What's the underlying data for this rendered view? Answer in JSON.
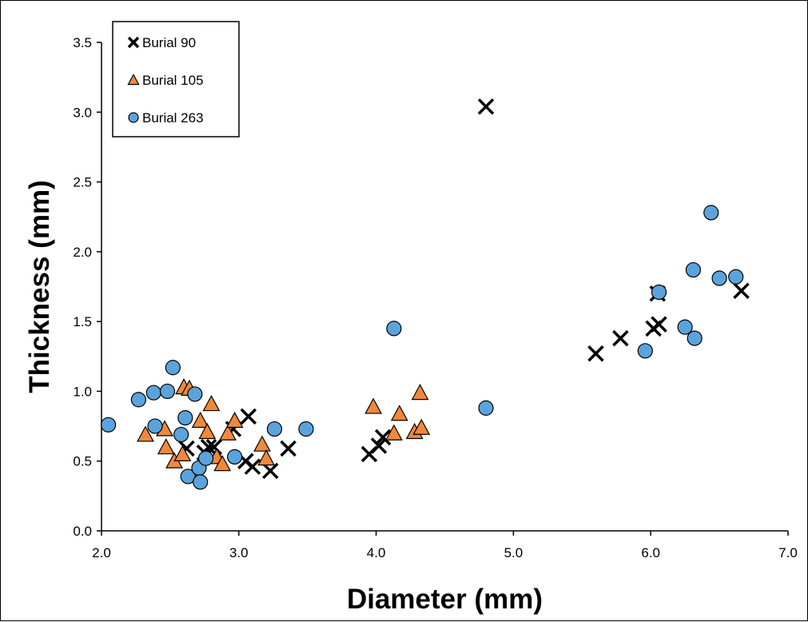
{
  "chart_data": {
    "type": "scatter",
    "title": "",
    "xlabel": "Diameter (mm)",
    "ylabel": "Thickness (mm)",
    "xlim": [
      2.0,
      7.0
    ],
    "ylim": [
      0.0,
      3.5
    ],
    "xticks": [
      "2.0",
      "3.0",
      "4.0",
      "5.0",
      "6.0",
      "7.0"
    ],
    "yticks": [
      "0.0",
      "0.5",
      "1.0",
      "1.5",
      "2.0",
      "2.5",
      "3.0",
      "3.5"
    ],
    "grid": false,
    "legend_position": "top-left",
    "series": [
      {
        "name": "Burial 90",
        "marker": "x",
        "color": "#000000",
        "points": [
          [
            2.62,
            0.59
          ],
          [
            2.75,
            0.56
          ],
          [
            2.78,
            0.6
          ],
          [
            2.82,
            0.6
          ],
          [
            2.96,
            0.73
          ],
          [
            3.05,
            0.5
          ],
          [
            3.07,
            0.82
          ],
          [
            3.1,
            0.46
          ],
          [
            3.23,
            0.43
          ],
          [
            3.36,
            0.59
          ],
          [
            3.95,
            0.55
          ],
          [
            4.02,
            0.61
          ],
          [
            4.05,
            0.67
          ],
          [
            4.8,
            3.04
          ],
          [
            5.6,
            1.27
          ],
          [
            5.78,
            1.38
          ],
          [
            6.02,
            1.45
          ],
          [
            6.06,
            1.48
          ],
          [
            6.05,
            1.7
          ],
          [
            6.66,
            1.72
          ]
        ]
      },
      {
        "name": "Burial 105",
        "marker": "triangle",
        "color": "#f0883c",
        "points": [
          [
            2.32,
            0.69
          ],
          [
            2.46,
            0.73
          ],
          [
            2.47,
            0.6
          ],
          [
            2.53,
            0.5
          ],
          [
            2.59,
            0.55
          ],
          [
            2.6,
            1.03
          ],
          [
            2.64,
            1.02
          ],
          [
            2.72,
            0.79
          ],
          [
            2.77,
            0.71
          ],
          [
            2.8,
            0.91
          ],
          [
            2.84,
            0.53
          ],
          [
            2.88,
            0.48
          ],
          [
            2.92,
            0.7
          ],
          [
            2.97,
            0.79
          ],
          [
            3.17,
            0.62
          ],
          [
            3.2,
            0.52
          ],
          [
            3.98,
            0.89
          ],
          [
            4.13,
            0.7
          ],
          [
            4.17,
            0.84
          ],
          [
            4.28,
            0.71
          ],
          [
            4.32,
            0.99
          ],
          [
            4.33,
            0.74
          ]
        ]
      },
      {
        "name": "Burial 263",
        "marker": "circle",
        "color": "#5ba3dc",
        "points": [
          [
            2.05,
            0.76
          ],
          [
            2.27,
            0.94
          ],
          [
            2.38,
            0.99
          ],
          [
            2.39,
            0.75
          ],
          [
            2.48,
            1.0
          ],
          [
            2.52,
            1.17
          ],
          [
            2.58,
            0.69
          ],
          [
            2.61,
            0.81
          ],
          [
            2.63,
            0.39
          ],
          [
            2.68,
            0.98
          ],
          [
            2.71,
            0.45
          ],
          [
            2.72,
            0.35
          ],
          [
            2.76,
            0.52
          ],
          [
            2.97,
            0.53
          ],
          [
            3.26,
            0.73
          ],
          [
            3.49,
            0.73
          ],
          [
            4.13,
            1.45
          ],
          [
            4.8,
            0.88
          ],
          [
            5.96,
            1.29
          ],
          [
            6.06,
            1.71
          ],
          [
            6.25,
            1.46
          ],
          [
            6.31,
            1.87
          ],
          [
            6.32,
            1.38
          ],
          [
            6.44,
            2.28
          ],
          [
            6.5,
            1.81
          ],
          [
            6.62,
            1.82
          ]
        ]
      }
    ]
  }
}
